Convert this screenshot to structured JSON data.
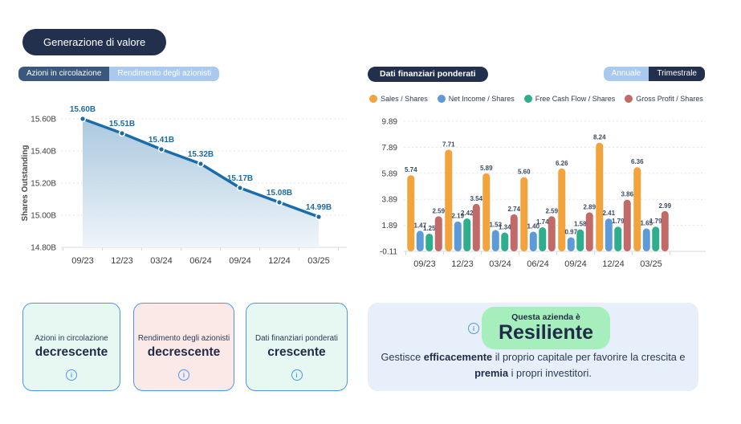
{
  "header": {
    "title_button": "Generazione di valore"
  },
  "left_panel": {
    "tabs": [
      {
        "label": "Azioni in circolazione",
        "active": true
      },
      {
        "label": "Rendimento degli azionisti",
        "active": false
      }
    ]
  },
  "right_panel": {
    "title_tab": "Dati finanziari ponderati",
    "period_toggle": [
      {
        "label": "Annuale",
        "active": true
      },
      {
        "label": "Trimestrale",
        "active": false
      }
    ]
  },
  "chart_data": [
    {
      "type": "area",
      "title": "",
      "xlabel": "",
      "ylabel": "Shares Outstanding",
      "x": [
        "09/23",
        "12/23",
        "03/24",
        "06/24",
        "09/24",
        "12/24",
        "03/25"
      ],
      "values": [
        15.6,
        15.51,
        15.41,
        15.32,
        15.17,
        15.08,
        14.99
      ],
      "point_labels": [
        "15.60B",
        "15.51B",
        "15.41B",
        "15.32B",
        "15.17B",
        "15.08B",
        "14.99B"
      ],
      "ytick_values": [
        14.8,
        15.0,
        15.2,
        15.4,
        15.6
      ],
      "ytick_labels": [
        "14.80B",
        "15.00B",
        "15.20B",
        "15.40B",
        "15.60B"
      ],
      "ylim": [
        14.8,
        15.6
      ],
      "grid": true,
      "legend_position": "none",
      "line_color": "#1B6CA8",
      "area_top_color": "#9DBFD9",
      "area_bottom_color": "#EDF4F9"
    },
    {
      "type": "bar",
      "title": "",
      "xlabel": "",
      "ylabel": "",
      "categories": [
        "09/23",
        "12/23",
        "03/24",
        "06/24",
        "09/24",
        "12/24",
        "03/25"
      ],
      "series": [
        {
          "name": "Sales / Shares",
          "color": "#F2A33B",
          "values": [
            5.74,
            7.71,
            5.89,
            5.6,
            6.26,
            8.24,
            6.36
          ]
        },
        {
          "name": "Net Income / Shares",
          "color": "#5D9BD8",
          "values": [
            1.47,
            2.19,
            1.53,
            1.4,
            0.97,
            2.41,
            1.65
          ]
        },
        {
          "name": "Free Cash Flow / Shares",
          "color": "#2FAE8E",
          "values": [
            1.25,
            2.42,
            1.34,
            1.74,
            1.58,
            1.79,
            1.79
          ]
        },
        {
          "name": "Gross Profit / Shares",
          "color": "#C16A68",
          "values": [
            2.59,
            3.54,
            2.74,
            2.59,
            2.89,
            3.86,
            2.99
          ]
        }
      ],
      "ytick_values": [
        -0.11,
        1.89,
        3.89,
        5.89,
        7.89,
        9.89
      ],
      "ytick_labels": [
        "-0.11",
        "1.89",
        "3.89",
        "5.89",
        "7.89",
        "9.89"
      ],
      "ylim": [
        -0.11,
        9.89
      ],
      "grid": true,
      "legend_position": "top"
    }
  ],
  "summary_cards": [
    {
      "title": "Azioni in circolazione",
      "value": "decrescente",
      "tone": "positive"
    },
    {
      "title": "Rendimento degli azionisti",
      "value": "decrescente",
      "tone": "negative"
    },
    {
      "title": "Dati finanziari ponderati",
      "value": "crescente",
      "tone": "positive"
    }
  ],
  "verdict_card": {
    "badge_intro": "Questa azienda è",
    "badge_value": "Resiliente",
    "description_segments": [
      {
        "text": "Gestisce ",
        "bold": false
      },
      {
        "text": "efficacemente",
        "bold": true
      },
      {
        "text": " il proprio capitale per favorire la crescita e ",
        "bold": false
      },
      {
        "text": "premia",
        "bold": true
      },
      {
        "text": " i propri investitori.",
        "bold": false
      }
    ]
  },
  "colors": {
    "navy": "#22304E",
    "active_tab": "#3A587E",
    "inactive_tab": "#A9C9EF",
    "accent_blue": "#4D96F0",
    "mint_card": "#E6F8F1",
    "pink_card": "#FBE9E7",
    "verdict_bg": "#E7F0FA",
    "badge_green": "#A6EFBD",
    "dark_text": "#1F2B48"
  }
}
